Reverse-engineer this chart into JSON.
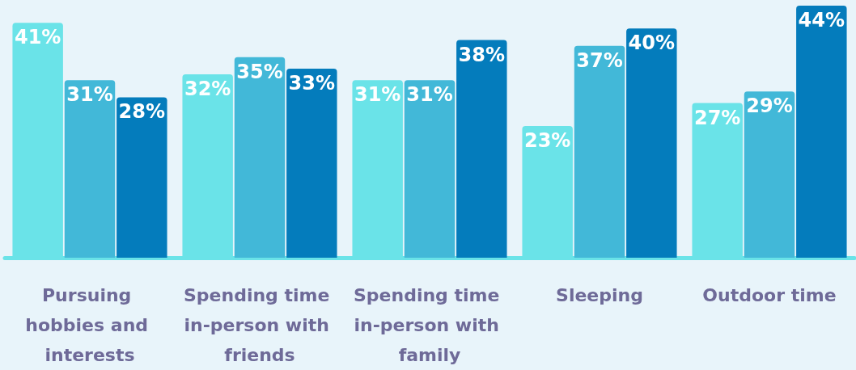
{
  "chart_data": {
    "type": "bar",
    "categories": [
      "Pursuing hobbies and interests",
      "Spending time in-person with friends",
      "Spending time in-person with family",
      "Sleeping",
      "Outdoor time"
    ],
    "series": [
      {
        "color": "#6ae3e8",
        "values": [
          41,
          32,
          31,
          23,
          27
        ],
        "value_labels": [
          "41%",
          "32%",
          "31%",
          "23%",
          "27%"
        ]
      },
      {
        "color": "#42b8d8",
        "values": [
          31,
          35,
          31,
          37,
          29
        ],
        "value_labels": [
          "31%",
          "35%",
          "31%",
          "37%",
          "29%"
        ]
      },
      {
        "color": "#047cbc",
        "values": [
          28,
          33,
          38,
          40,
          44
        ],
        "value_labels": [
          "28%",
          "33%",
          "38%",
          "40%",
          "44%"
        ]
      }
    ]
  }
}
